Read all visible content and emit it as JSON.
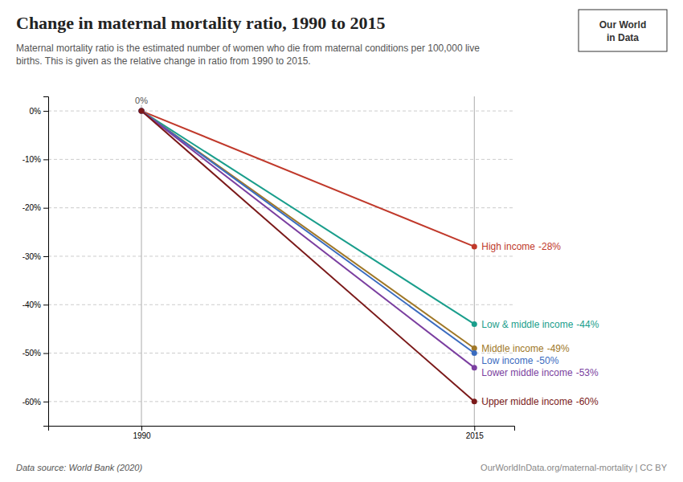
{
  "chart_data": {
    "type": "line",
    "title": "Change in maternal mortality ratio, 1990 to 2015",
    "subtitle": "Maternal mortality ratio is the estimated number of women who die from maternal conditions per 100,000 live\nbirths. This is given as the relative change in ratio from 1990 to 2015.",
    "source": "Data source: World Bank (2020)",
    "copyright": "OurWorldInData.org/maternal-mortality | CC BY",
    "logo": [
      "Our World",
      "in Data"
    ],
    "x": [
      1990,
      2015
    ],
    "series": [
      {
        "name": "High income",
        "color": "#c0392b",
        "values": [
          0,
          -28
        ],
        "value_labels": [
          null,
          "-28%"
        ]
      },
      {
        "name": "Low & middle income",
        "color": "#1a9e8c",
        "values": [
          0,
          -44
        ],
        "value_labels": [
          null,
          "-44%"
        ]
      },
      {
        "name": "Middle income",
        "color": "#a07828",
        "values": [
          0,
          -49
        ],
        "value_labels": [
          null,
          "-49%"
        ]
      },
      {
        "name": "Low income",
        "color": "#3a6bbf",
        "values": [
          0,
          -50
        ],
        "value_labels": [
          null,
          "-50%"
        ]
      },
      {
        "name": "Lower middle income",
        "color": "#7b3fa0",
        "values": [
          0,
          -53
        ],
        "value_labels": [
          null,
          "-53%"
        ]
      },
      {
        "name": "Upper middle income",
        "color": "#7b1a1a",
        "values": [
          0,
          -60
        ],
        "value_labels": [
          null,
          "-60%"
        ]
      }
    ],
    "annotations": [
      {
        "text": "0%",
        "x": 1990,
        "y": 0
      }
    ],
    "xlim": [
      1983,
      2018
    ],
    "xticks": [
      1990,
      2015
    ],
    "ylim": [
      -65,
      3
    ],
    "yticks": [
      {
        "value": 0,
        "label": "0%"
      },
      {
        "value": -10,
        "label": "-10%"
      },
      {
        "value": -20,
        "label": "-20%"
      },
      {
        "value": -30,
        "label": "-30%"
      },
      {
        "value": -40,
        "label": "-40%"
      },
      {
        "value": -50,
        "label": "-50%"
      },
      {
        "value": -60,
        "label": "-60%"
      }
    ],
    "grid": true,
    "data_labels": true,
    "marker": "circle"
  }
}
